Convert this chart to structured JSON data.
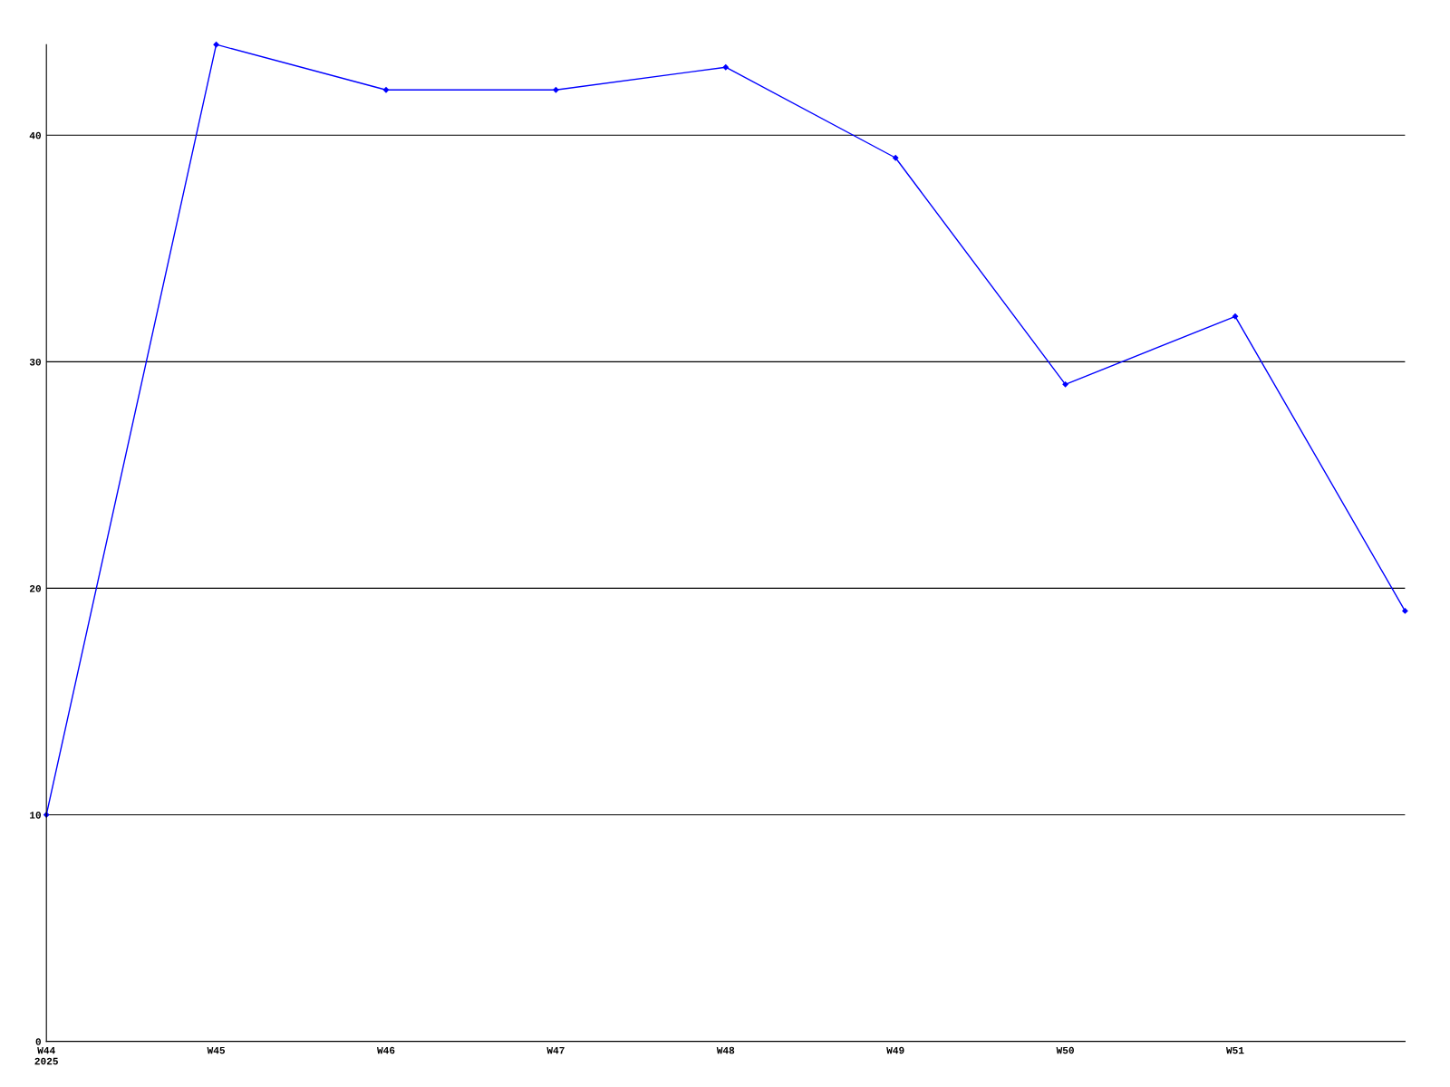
{
  "chart_data": {
    "type": "line",
    "categories": [
      "W44\n2025",
      "W45",
      "W46",
      "W47",
      "W48",
      "W49",
      "W50",
      "W51",
      null
    ],
    "series": [
      {
        "color": "#0000ff",
        "values": [
          10,
          44,
          42,
          42,
          43,
          39,
          29,
          32,
          19
        ]
      }
    ],
    "ylim": [
      0,
      44
    ],
    "yticks": [
      0,
      10,
      20,
      30,
      40
    ],
    "grid": "y",
    "marker": "diamond",
    "line_style": "solid"
  }
}
